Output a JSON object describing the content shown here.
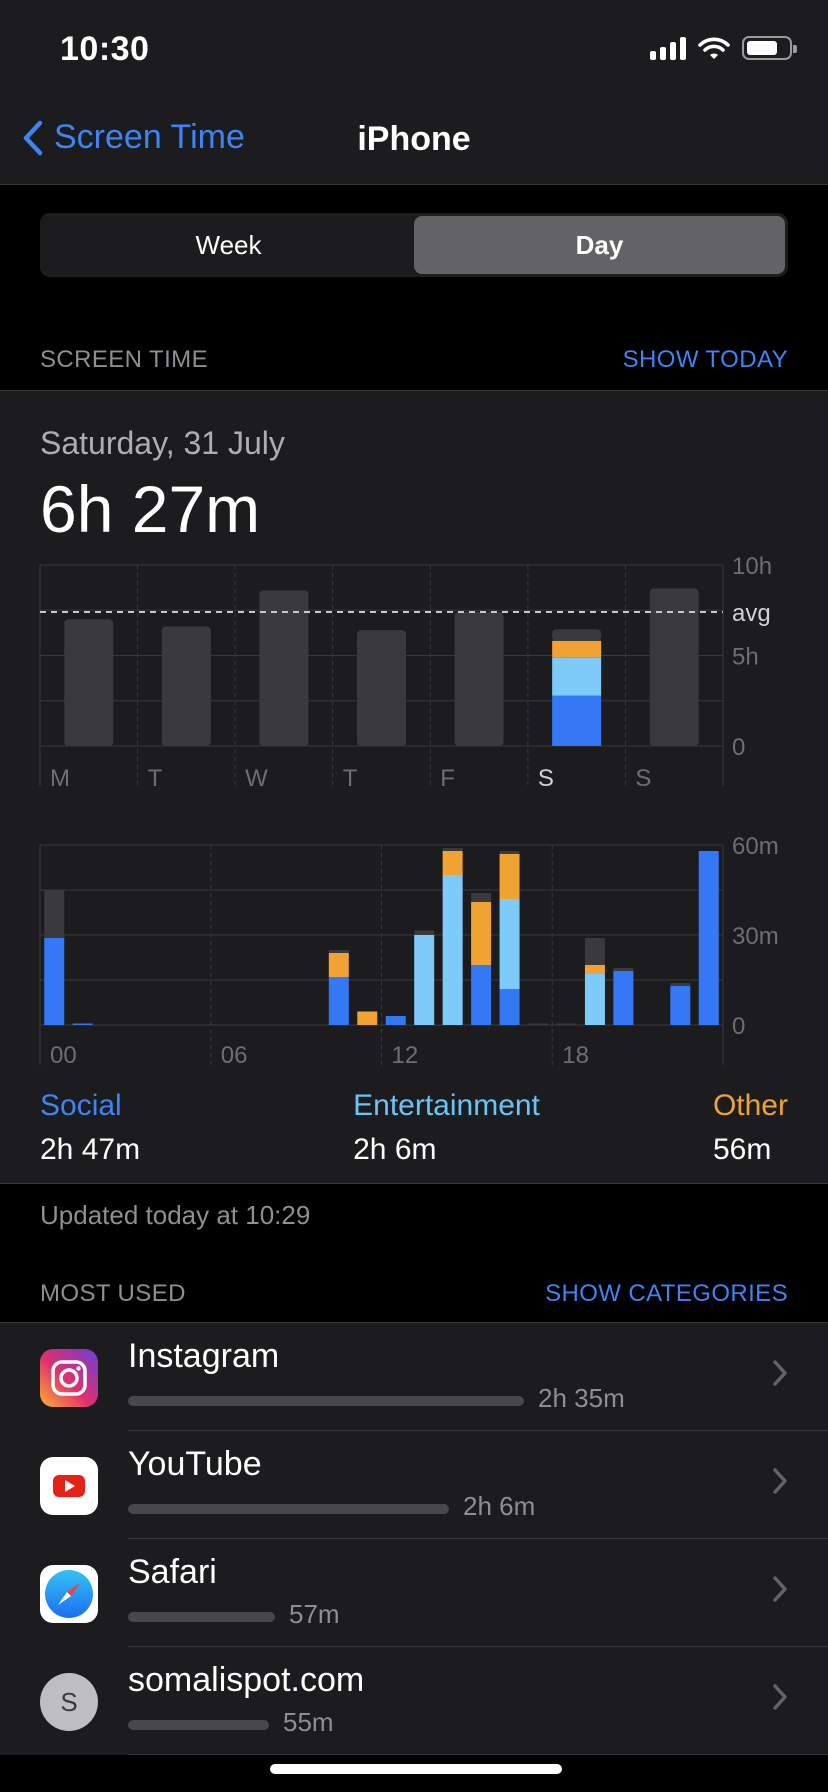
{
  "status_bar": {
    "time": "10:30",
    "battery_level": 0.75
  },
  "nav": {
    "back_label": "Screen Time",
    "title": "iPhone"
  },
  "segmented": {
    "options": [
      "Week",
      "Day"
    ],
    "selected": "Day"
  },
  "screen_time_header": {
    "label": "SCREEN TIME",
    "action": "SHOW TODAY"
  },
  "summary": {
    "date": "Saturday, 31 July",
    "total": "6h 27m"
  },
  "colors": {
    "social": "#3478f6",
    "entertainment": "#7ecbf9",
    "other": "#f0a232",
    "inactive": "#3a3a3c",
    "accent": "#3d84f5"
  },
  "chart_data": [
    {
      "type": "bar",
      "categories": [
        "M",
        "T",
        "W",
        "T",
        "F",
        "S",
        "S"
      ],
      "y_ticks": [
        "10h",
        "avg",
        "5h",
        "0"
      ],
      "ylim": [
        0,
        10
      ],
      "average": 7.4,
      "selected_index": 5,
      "values": [
        7.0,
        6.6,
        8.6,
        6.4,
        7.4,
        6.45,
        8.7
      ],
      "selected_breakdown": {
        "social": 2.78,
        "entertainment": 2.1,
        "other": 0.93,
        "uncategorized": 0.64
      }
    },
    {
      "type": "bar",
      "x_ticks": [
        "00",
        "06",
        "12",
        "18"
      ],
      "y_ticks": [
        "60m",
        "30m",
        "0"
      ],
      "ylim": [
        0,
        60
      ],
      "hours": [
        0,
        1,
        10,
        11,
        12,
        13,
        14,
        15,
        16,
        17,
        18,
        19,
        20,
        21,
        22,
        23
      ],
      "series": [
        {
          "name": "Social",
          "values": [
            29,
            0.5,
            16,
            0,
            3,
            0,
            0,
            20,
            12,
            0,
            0,
            0,
            18,
            0,
            13,
            58
          ]
        },
        {
          "name": "Entertainment",
          "values": [
            0,
            0,
            0,
            0,
            0,
            30,
            50,
            0,
            30,
            0,
            0,
            17,
            0,
            0,
            0,
            0
          ]
        },
        {
          "name": "Other",
          "values": [
            0,
            0,
            8,
            4.5,
            0,
            0,
            8,
            21,
            15,
            0,
            0,
            3,
            0,
            0,
            0,
            0
          ]
        },
        {
          "name": "Uncategorized",
          "values": [
            16,
            0,
            1,
            0,
            0,
            1.5,
            1,
            3,
            1,
            0.5,
            0.5,
            9,
            1,
            0,
            1,
            0
          ]
        }
      ]
    }
  ],
  "legend": [
    {
      "name": "Social",
      "value": "2h 47m"
    },
    {
      "name": "Entertainment",
      "value": "2h 6m"
    },
    {
      "name": "Other",
      "value": "56m"
    }
  ],
  "updated": "Updated today at 10:29",
  "most_used_header": {
    "label": "MOST USED",
    "action": "SHOW CATEGORIES"
  },
  "apps": [
    {
      "name": "Instagram",
      "time": "2h 35m",
      "icon": "instagram-icon",
      "usage_fraction": 1.0
    },
    {
      "name": "YouTube",
      "time": "2h 6m",
      "icon": "youtube-icon",
      "usage_fraction": 0.81
    },
    {
      "name": "Safari",
      "time": "57m",
      "icon": "safari-icon",
      "usage_fraction": 0.37
    },
    {
      "name": "somalispot.com",
      "time": "55m",
      "icon": "website-icon",
      "icon_letter": "S",
      "usage_fraction": 0.355
    }
  ]
}
